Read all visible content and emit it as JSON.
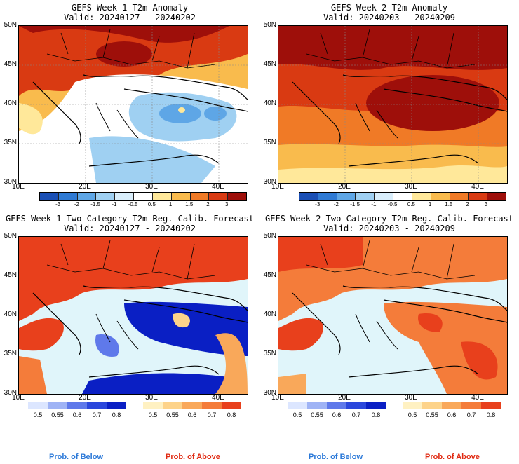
{
  "panels": [
    {
      "title": "GEFS Week-1 T2m Anomaly",
      "valid": "Valid: 20240127 - 20240202"
    },
    {
      "title": "GEFS Week-2 T2m Anomaly",
      "valid": "Valid: 20240203 - 20240209"
    },
    {
      "title": "GEFS Week-1 Two-Category T2m Reg. Calib. Forecast",
      "valid": "Valid: 20240127 - 20240202"
    },
    {
      "title": "GEFS Week-2 Two-Category T2m Reg. Calib. Forecast",
      "valid": "Valid: 20240203 - 20240209"
    }
  ],
  "lat_labels": [
    "50N",
    "45N",
    "40N",
    "35N",
    "30N"
  ],
  "lon_labels": [
    "10E",
    "20E",
    "30E",
    "40E"
  ],
  "anomaly_scale": {
    "ticks": [
      "-3",
      "-2",
      "-1.5",
      "-1",
      "-0.5",
      "0.5",
      "1",
      "1.5",
      "2",
      "3"
    ],
    "colors": [
      "#1a4fb5",
      "#2f7ad4",
      "#5ea6e6",
      "#9fd0f2",
      "#d9eefb",
      "#ffffff",
      "#ffe89a",
      "#f9bb4d",
      "#f07a26",
      "#d93a12",
      "#9e0f0a"
    ]
  },
  "prob_scale": {
    "ticks": [
      "0.5",
      "0.55",
      "0.6",
      "0.7",
      "0.8"
    ],
    "below_colors": [
      "#dce6ff",
      "#9fb3f5",
      "#5f79ea",
      "#2b47dc",
      "#0a1fc4"
    ],
    "above_colors": [
      "#fff1c2",
      "#fdd38a",
      "#f9a85a",
      "#f47c3a",
      "#e8401c"
    ]
  },
  "footer": {
    "below": "Prob. of Below",
    "above": "Prob. of Above",
    "below_color": "#2a78d8",
    "above_color": "#e02a12"
  }
}
